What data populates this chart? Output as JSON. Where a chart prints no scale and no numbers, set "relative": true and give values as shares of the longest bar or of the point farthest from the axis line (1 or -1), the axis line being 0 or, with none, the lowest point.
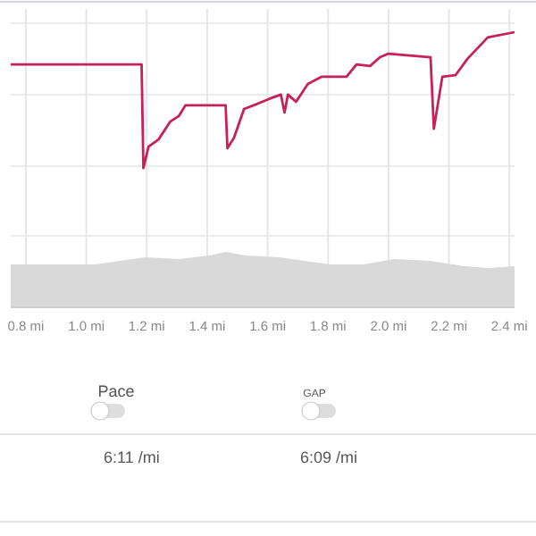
{
  "chart_data": {
    "type": "line",
    "relative": true,
    "grid": true,
    "xlim": [
      0.75,
      2.417
    ],
    "xticks": [
      {
        "value": 0.8,
        "label": "0.8 mi"
      },
      {
        "value": 1.0,
        "label": "1.0 mi"
      },
      {
        "value": 1.2,
        "label": "1.2 mi"
      },
      {
        "value": 1.4,
        "label": "1.4 mi"
      },
      {
        "value": 1.6,
        "label": "1.6 mi"
      },
      {
        "value": 1.8,
        "label": "1.8 mi"
      },
      {
        "value": 2.0,
        "label": "2.0 mi"
      },
      {
        "value": 2.2,
        "label": "2.2 mi"
      },
      {
        "value": 2.4,
        "label": "2.4 mi"
      }
    ],
    "series": [
      {
        "type": "area",
        "color": "#d9d9d9",
        "x": [
          0.75,
          1.028,
          1.194,
          1.306,
          1.406,
          1.461,
          1.528,
          1.639,
          1.806,
          1.917,
          2.017,
          2.139,
          2.25,
          2.333,
          2.417
        ],
        "values": [
          0.156,
          0.156,
          0.182,
          0.175,
          0.188,
          0.201,
          0.188,
          0.182,
          0.156,
          0.156,
          0.175,
          0.169,
          0.149,
          0.143,
          0.149
        ]
      },
      {
        "color": "#c8205a",
        "x": [
          0.75,
          1.183,
          1.189,
          1.206,
          1.239,
          1.278,
          1.306,
          1.328,
          1.461,
          1.467,
          1.489,
          1.522,
          1.567,
          1.611,
          1.644,
          1.656,
          1.667,
          1.694,
          1.733,
          1.778,
          1.861,
          1.894,
          1.939,
          1.972,
          2.0,
          2.139,
          2.15,
          2.178,
          2.222,
          2.261,
          2.306,
          2.328,
          2.417
        ],
        "values": [
          0.883,
          0.883,
          0.506,
          0.584,
          0.61,
          0.675,
          0.695,
          0.734,
          0.734,
          0.578,
          0.617,
          0.721,
          0.74,
          0.76,
          0.773,
          0.708,
          0.773,
          0.747,
          0.812,
          0.838,
          0.838,
          0.883,
          0.877,
          0.909,
          0.922,
          0.909,
          0.649,
          0.838,
          0.844,
          0.903,
          0.955,
          0.981,
          1.0
        ]
      }
    ],
    "annotations": [
      "Pace",
      "GAP",
      "6:11 /mi",
      "6:09 /mi"
    ]
  }
}
